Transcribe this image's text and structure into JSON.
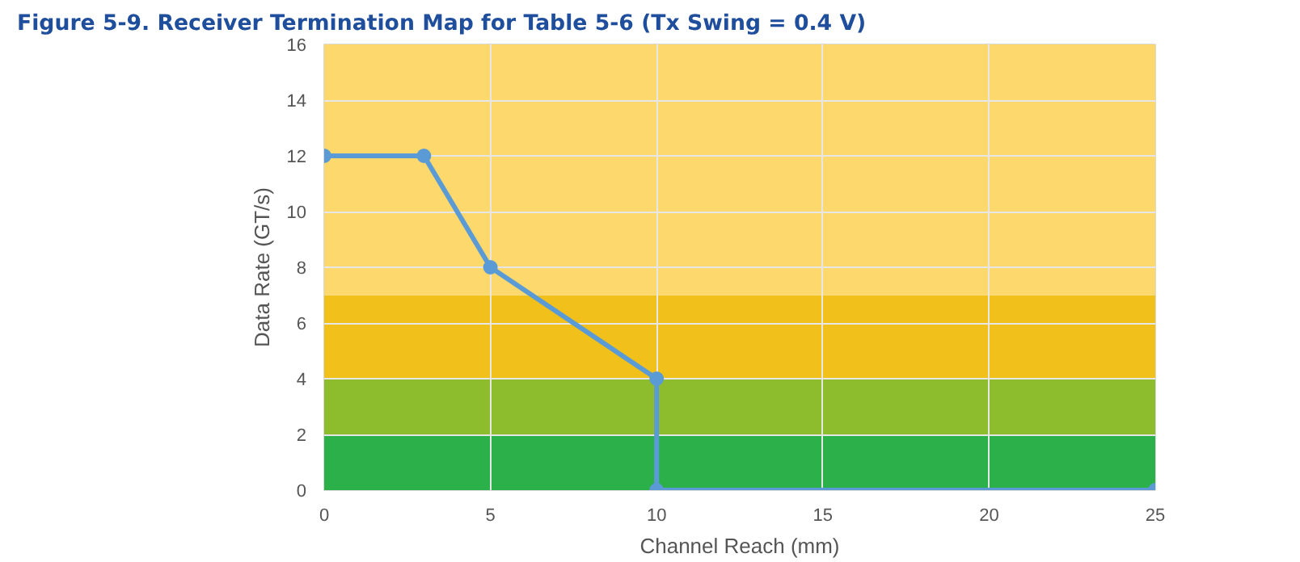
{
  "chart_data": {
    "type": "line",
    "title": "Figure 5-9.     Receiver Termination Map for Table 5-6 (Tx Swing = 0.4 V)",
    "xlabel": "Channel Reach (mm)",
    "ylabel": "Data Rate (GT/s)",
    "series": [
      {
        "color": "#5b9bd5",
        "x": [
          0,
          3,
          5,
          10,
          10,
          25
        ],
        "values": [
          12,
          12,
          8,
          4,
          0,
          0
        ]
      }
    ],
    "xlim": [
      0,
      25
    ],
    "xticks": [
      0,
      5,
      10,
      15,
      20,
      25
    ],
    "ylim": [
      0,
      16
    ],
    "yticks": [
      0,
      2,
      4,
      6,
      8,
      10,
      12,
      14,
      16
    ],
    "grid": true,
    "marker": "circle",
    "line_style": "solid",
    "bands": [
      {
        "axis": "y",
        "from": 0,
        "to": 2,
        "color": "#2bb04a"
      },
      {
        "axis": "y",
        "from": 2,
        "to": 4,
        "color": "#8dbd2c"
      },
      {
        "axis": "y",
        "from": 4,
        "to": 7,
        "color": "#f2c01a"
      },
      {
        "axis": "y",
        "from": 7,
        "to": 16,
        "color": "#fdd86c"
      }
    ]
  }
}
